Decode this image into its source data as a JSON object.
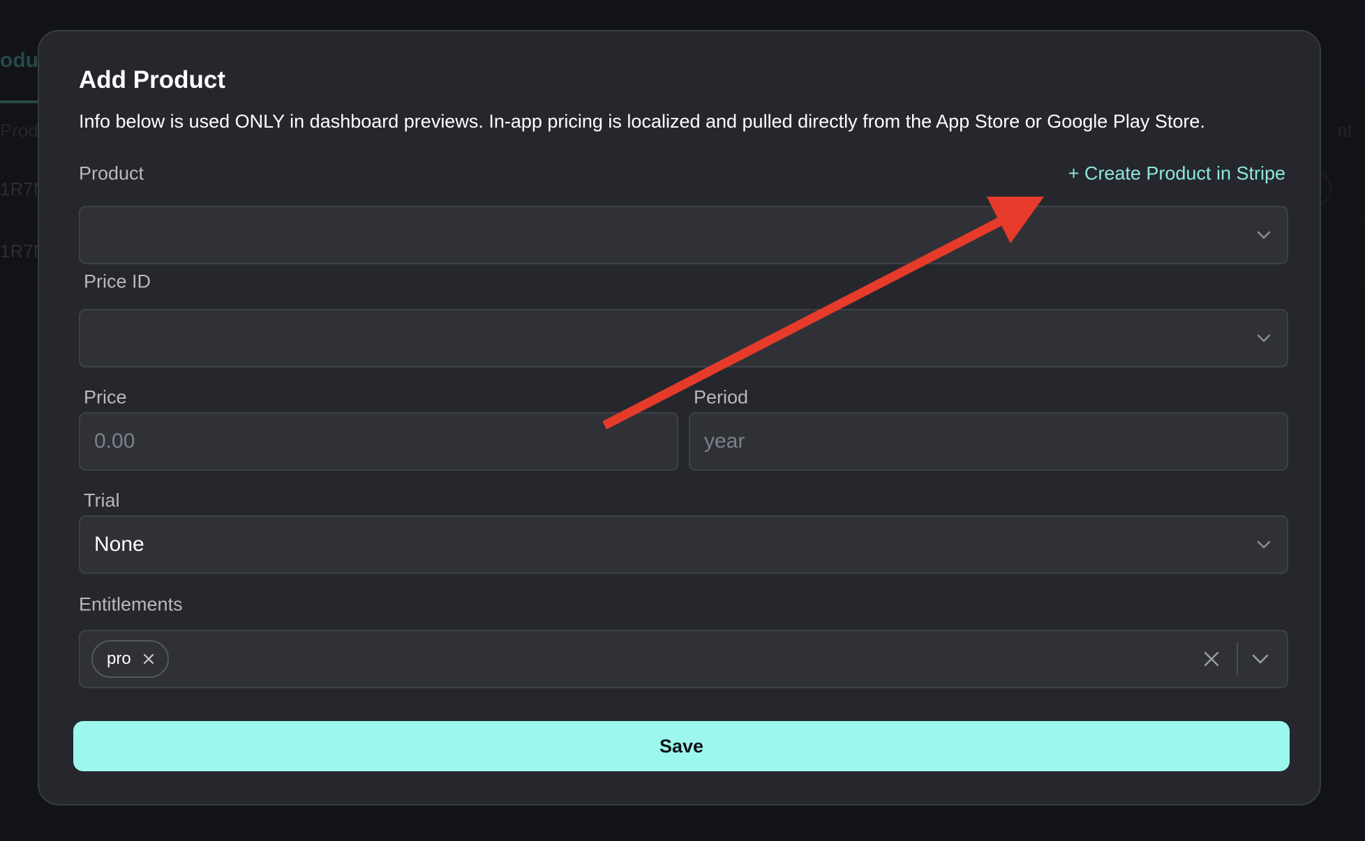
{
  "background": {
    "tab_label": "odu",
    "col_left": "Produ",
    "col_right": "nt",
    "rows": [
      "1R7N",
      "1R7N"
    ]
  },
  "modal": {
    "title": "Add Product",
    "subtitle": "Info below is used ONLY in dashboard previews. In-app pricing is localized and pulled directly from the App Store or Google Play Store.",
    "create_link": "+ Create Product in Stripe",
    "product": {
      "label": "Product",
      "value": ""
    },
    "price_id": {
      "label": "Price ID",
      "value": ""
    },
    "price": {
      "label": "Price",
      "placeholder": "0.00"
    },
    "period": {
      "label": "Period",
      "placeholder": "year"
    },
    "trial": {
      "label": "Trial",
      "value": "None"
    },
    "entitlements": {
      "label": "Entitlements",
      "chips": [
        "pro"
      ]
    },
    "save_label": "Save"
  },
  "colors": {
    "accent": "#9cf8ee",
    "link": "#8fe6dc",
    "modal_bg": "#25272d",
    "annotation_arrow": "#e63b2a"
  },
  "icons": {
    "select_toggle": "chevron-down-icon",
    "chip_remove": "close-icon",
    "clear_all": "close-icon"
  }
}
